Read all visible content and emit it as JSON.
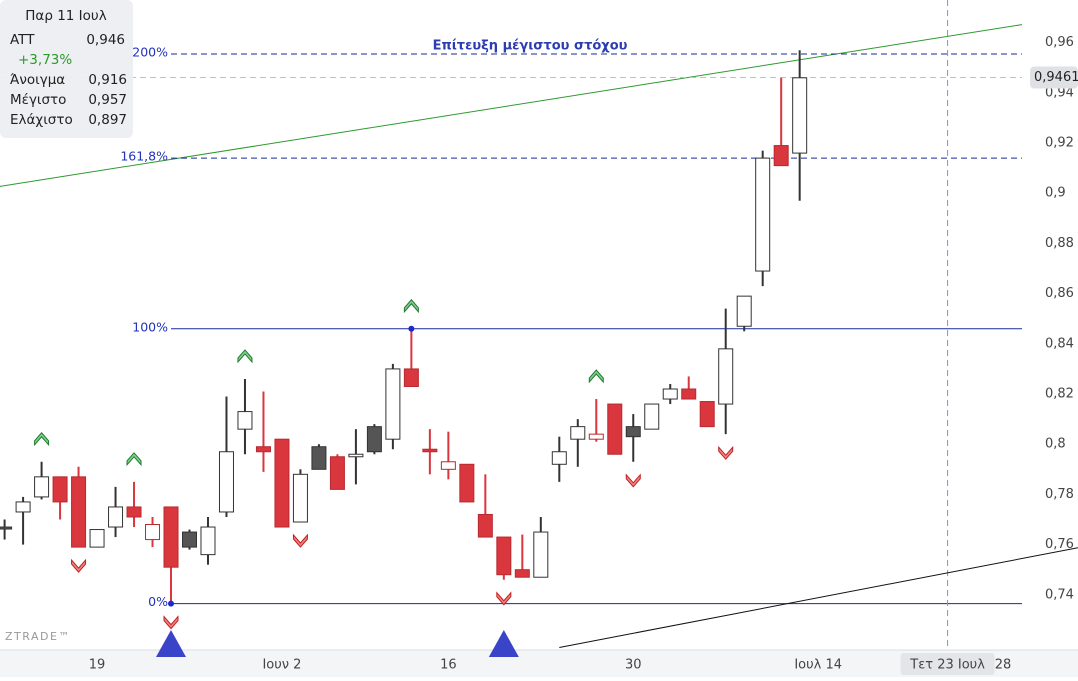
{
  "chart_data": {
    "type": "candlestick",
    "categories": [
      null,
      null,
      null,
      null,
      null,
      "19",
      null,
      null,
      null,
      null,
      null,
      null,
      null,
      null,
      null,
      "Ιουν 2",
      null,
      null,
      null,
      null,
      null,
      null,
      null,
      null,
      "16",
      null,
      null,
      null,
      null,
      null,
      null,
      null,
      null,
      null,
      "30",
      null,
      null,
      null,
      null,
      null,
      null,
      null,
      null,
      null,
      "Ιουλ 14",
      null,
      null,
      null,
      null,
      null,
      null,
      "Τετ 23 Ιουλ",
      null,
      null,
      "28"
    ],
    "open": [
      0.767,
      0.773,
      0.779,
      0.787,
      0.787,
      0.759,
      0.767,
      0.775,
      0.762,
      0.775,
      0.765,
      0.756,
      0.773,
      0.806,
      0.799,
      0.802,
      0.769,
      0.799,
      0.795,
      0.795,
      0.807,
      0.802,
      0.83,
      0.798,
      0.79,
      0.792,
      0.772,
      0.763,
      0.75,
      0.747,
      0.792,
      0.802,
      0.802,
      0.816,
      0.807,
      0.806,
      0.818,
      0.822,
      0.817,
      0.816,
      0.847,
      0.869,
      0.919,
      0.916,
      null,
      null,
      null,
      null,
      null,
      null,
      null,
      null,
      null,
      null,
      null
    ],
    "high": [
      0.77,
      0.779,
      0.793,
      0.787,
      0.791,
      0.766,
      0.783,
      0.785,
      0.771,
      0.775,
      0.766,
      0.771,
      0.819,
      0.826,
      0.821,
      0.802,
      0.79,
      0.8,
      0.796,
      0.806,
      0.808,
      0.832,
      0.846,
      0.806,
      0.805,
      0.792,
      0.788,
      0.763,
      0.764,
      0.771,
      0.803,
      0.81,
      0.818,
      0.816,
      0.812,
      0.816,
      0.824,
      0.827,
      0.817,
      0.854,
      0.859,
      0.917,
      0.946,
      0.957,
      null,
      null,
      null,
      null,
      null,
      null,
      null,
      null,
      null,
      null,
      null
    ],
    "low": [
      0.762,
      0.76,
      0.778,
      0.77,
      0.759,
      0.759,
      0.763,
      0.767,
      0.759,
      0.7365,
      0.758,
      0.752,
      0.771,
      0.796,
      0.789,
      0.767,
      0.769,
      0.79,
      0.782,
      0.784,
      0.796,
      0.798,
      0.823,
      0.788,
      0.786,
      0.777,
      0.763,
      0.746,
      0.747,
      0.747,
      0.785,
      0.791,
      0.801,
      0.796,
      0.793,
      0.806,
      0.816,
      0.818,
      0.807,
      0.804,
      0.845,
      0.863,
      0.911,
      0.897,
      null,
      null,
      null,
      null,
      null,
      null,
      null,
      null,
      null,
      null,
      null
    ],
    "close": [
      0.767,
      0.777,
      0.787,
      0.777,
      0.759,
      0.766,
      0.775,
      0.771,
      0.768,
      0.751,
      0.759,
      0.767,
      0.797,
      0.813,
      0.797,
      0.767,
      0.788,
      0.79,
      0.782,
      0.796,
      0.797,
      0.83,
      0.823,
      0.797,
      0.793,
      0.777,
      0.763,
      0.748,
      0.747,
      0.765,
      0.797,
      0.807,
      0.804,
      0.796,
      0.803,
      0.816,
      0.822,
      0.818,
      0.807,
      0.838,
      0.859,
      0.914,
      0.911,
      0.946,
      null,
      null,
      null,
      null,
      null,
      null,
      null,
      null,
      null,
      null,
      null
    ],
    "up_color": "#555555",
    "down_color": "#d9363e",
    "ylim": [
      0.718,
      0.977
    ],
    "yticks": [
      {
        "value": 0.74,
        "label": "0,74"
      },
      {
        "value": 0.76,
        "label": "0,76"
      },
      {
        "value": 0.78,
        "label": "0,78"
      },
      {
        "value": 0.8,
        "label": "0,8"
      },
      {
        "value": 0.82,
        "label": "0,82"
      },
      {
        "value": 0.84,
        "label": "0,84"
      },
      {
        "value": 0.86,
        "label": "0,86"
      },
      {
        "value": 0.88,
        "label": "0,88"
      },
      {
        "value": 0.9,
        "label": "0,9"
      },
      {
        "value": 0.92,
        "label": "0,92"
      },
      {
        "value": 0.94,
        "label": "0,94"
      },
      {
        "value": 0.96,
        "label": "0,96"
      }
    ],
    "fib_levels": [
      {
        "value": 0.7365,
        "label": "0%"
      },
      {
        "value": 0.846,
        "label": "100%"
      },
      {
        "value": 0.914,
        "label": "161,8%"
      },
      {
        "value": 0.9555,
        "label": "200%"
      }
    ],
    "annotation": "Επίτευξη μέγιστου στόχου",
    "buy_signals": [
      2,
      7,
      13,
      22,
      32
    ],
    "sell_signals": [
      4,
      9,
      16,
      27,
      34,
      39
    ],
    "pivot_lows": [
      9,
      27
    ],
    "trend_lines": [
      {
        "color": "#2e9a2e",
        "from": [
          0,
          0.903
        ],
        "to": [
          54,
          0.966
        ]
      },
      {
        "color": "#111111",
        "from": [
          30,
          0.719
        ],
        "to": [
          54,
          0.753
        ]
      }
    ],
    "crosshair": {
      "value": 0.9461,
      "label": "0,9461"
    },
    "crosshair_category": 51
  },
  "tooltip": {
    "date": "Παρ 11 Ιουλ",
    "symbol": "ATT",
    "price": "0,946",
    "change": "+3,73%",
    "rows": [
      [
        "Άνοιγμα",
        "0,916"
      ],
      [
        "Μέγιστο",
        "0,957"
      ],
      [
        "Ελάχιστο",
        "0,897"
      ]
    ]
  },
  "watermark": "ZTRADE™"
}
